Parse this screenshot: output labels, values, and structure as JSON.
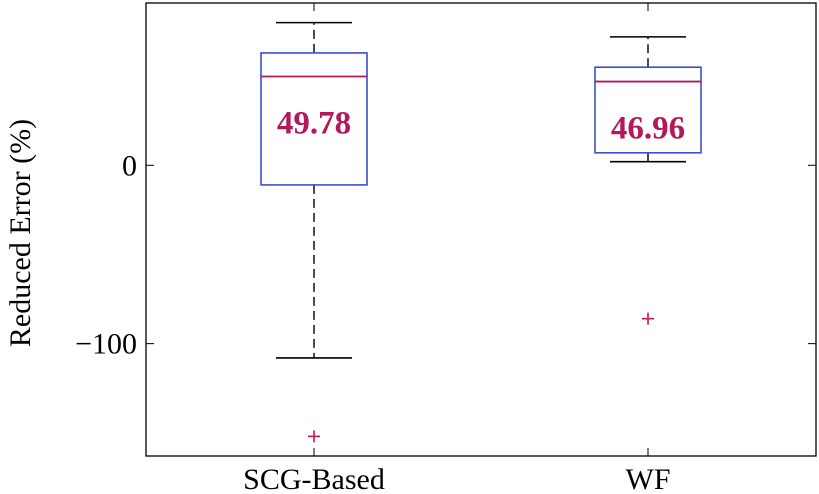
{
  "chart_data": {
    "type": "boxplot",
    "title": "",
    "xlabel": "",
    "ylabel": "Reduced Error (%)",
    "ylim": [
      -163,
      91
    ],
    "y_ticks": [
      0,
      -100
    ],
    "y_tick_labels": [
      "0",
      "−100"
    ],
    "categories": [
      "SCG-Based",
      "WF"
    ],
    "series": [
      {
        "category": "SCG-Based",
        "whisker_low": -108,
        "q1": -11,
        "median": 49.78,
        "q3": 63,
        "whisker_high": 80,
        "outliers": [
          -152
        ],
        "median_label": "49.78"
      },
      {
        "category": "WF",
        "whisker_low": 2,
        "q1": 7,
        "median": 46.96,
        "q3": 55,
        "whisker_high": 72,
        "outliers": [
          -86
        ],
        "median_label": "46.96"
      }
    ],
    "colors": {
      "box": "#3b4fd0",
      "median": "#b3195a",
      "outlier": "#c1175a",
      "label": "#b3195a",
      "whisker": "#000000",
      "axis": "#000000"
    },
    "grid": false,
    "legend": "none"
  }
}
